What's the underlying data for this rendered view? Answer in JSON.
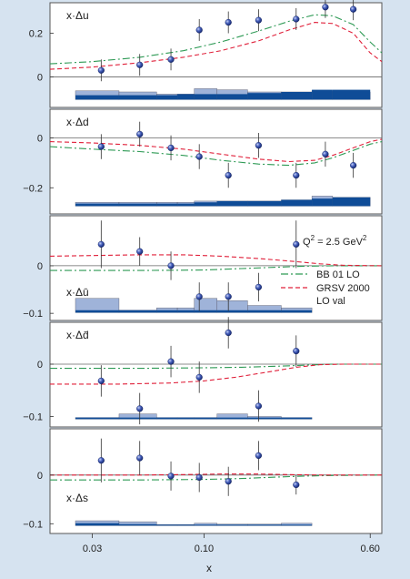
{
  "figure": {
    "xlabel": "x",
    "xticks": [
      {
        "value": 0.03,
        "label": "0.03"
      },
      {
        "value": 0.1,
        "label": "0.10"
      },
      {
        "value": 0.6,
        "label": "0.60"
      }
    ],
    "xlim": [
      0.019,
      0.68
    ],
    "colors": {
      "background": "#d6e3f0",
      "panel": "#ffffff",
      "bb01": "#2e9a55",
      "grsv": "#e0203a",
      "point": "#2a3f9a",
      "band_light": "#9fb3d9",
      "band_dark": "#0f4c97"
    }
  },
  "legend": {
    "q2_prefix": "Q",
    "q2_exp": "2",
    "q2_value": " = 2.5 GeV",
    "q2_unit_exp": "2",
    "bb01_label": "BB 01 LO",
    "grsv_label_1": "GRSV 2000",
    "grsv_label_2": "LO val"
  },
  "chart_data": [
    {
      "type": "scatter",
      "label": "x·Δu",
      "ylim": [
        -0.14,
        0.34
      ],
      "yticks": [
        {
          "value": 0,
          "label": "0"
        },
        {
          "value": 0.2,
          "label": "0.2"
        }
      ],
      "points": [
        {
          "x": 0.033,
          "y": 0.03,
          "err": 0.05
        },
        {
          "x": 0.05,
          "y": 0.055,
          "err": 0.05
        },
        {
          "x": 0.07,
          "y": 0.08,
          "err": 0.05
        },
        {
          "x": 0.095,
          "y": 0.215,
          "err": 0.05
        },
        {
          "x": 0.13,
          "y": 0.25,
          "err": 0.05
        },
        {
          "x": 0.18,
          "y": 0.26,
          "err": 0.05
        },
        {
          "x": 0.27,
          "y": 0.265,
          "err": 0.05
        },
        {
          "x": 0.37,
          "y": 0.32,
          "err": 0.05
        },
        {
          "x": 0.5,
          "y": 0.31,
          "err": 0.05
        }
      ],
      "bb01": [
        [
          0.019,
          0.06
        ],
        [
          0.03,
          0.07
        ],
        [
          0.05,
          0.09
        ],
        [
          0.08,
          0.12
        ],
        [
          0.12,
          0.16
        ],
        [
          0.18,
          0.21
        ],
        [
          0.25,
          0.255
        ],
        [
          0.33,
          0.285
        ],
        [
          0.4,
          0.28
        ],
        [
          0.5,
          0.24
        ],
        [
          0.6,
          0.16
        ],
        [
          0.68,
          0.11
        ]
      ],
      "grsv": [
        [
          0.019,
          0.035
        ],
        [
          0.03,
          0.045
        ],
        [
          0.05,
          0.065
        ],
        [
          0.08,
          0.09
        ],
        [
          0.12,
          0.12
        ],
        [
          0.18,
          0.165
        ],
        [
          0.25,
          0.215
        ],
        [
          0.33,
          0.25
        ],
        [
          0.4,
          0.245
        ],
        [
          0.5,
          0.2
        ],
        [
          0.6,
          0.11
        ],
        [
          0.68,
          0.07
        ]
      ],
      "bands": {
        "light": [
          [
            0.025,
            0.04,
            0.04
          ],
          [
            0.04,
            0.06,
            0.035
          ],
          [
            0.06,
            0.075,
            0.025
          ],
          [
            0.075,
            0.09,
            0.025
          ],
          [
            0.09,
            0.115,
            0.05
          ],
          [
            0.115,
            0.16,
            0.045
          ],
          [
            0.16,
            0.23,
            0.035
          ],
          [
            0.23,
            0.32,
            0.035
          ],
          [
            0.32,
            0.4,
            0.04
          ],
          [
            0.4,
            0.6,
            0.035
          ]
        ],
        "dark": [
          [
            0.025,
            0.04,
            0.02
          ],
          [
            0.04,
            0.06,
            0.02
          ],
          [
            0.06,
            0.075,
            0.02
          ],
          [
            0.075,
            0.09,
            0.025
          ],
          [
            0.09,
            0.115,
            0.025
          ],
          [
            0.115,
            0.16,
            0.025
          ],
          [
            0.16,
            0.23,
            0.03
          ],
          [
            0.23,
            0.32,
            0.035
          ],
          [
            0.32,
            0.4,
            0.045
          ],
          [
            0.4,
            0.6,
            0.045
          ]
        ]
      }
    },
    {
      "type": "scatter",
      "label": "x·Δd",
      "ylim": [
        -0.305,
        0.115
      ],
      "yticks": [
        {
          "value": 0,
          "label": "0"
        },
        {
          "value": -0.2,
          "label": "−0.2"
        }
      ],
      "points": [
        {
          "x": 0.033,
          "y": -0.035,
          "err": 0.05
        },
        {
          "x": 0.05,
          "y": 0.015,
          "err": 0.05
        },
        {
          "x": 0.07,
          "y": -0.04,
          "err": 0.05
        },
        {
          "x": 0.095,
          "y": -0.075,
          "err": 0.05
        },
        {
          "x": 0.13,
          "y": -0.15,
          "err": 0.05
        },
        {
          "x": 0.18,
          "y": -0.03,
          "err": 0.05
        },
        {
          "x": 0.27,
          "y": -0.15,
          "err": 0.05
        },
        {
          "x": 0.37,
          "y": -0.065,
          "err": 0.05
        },
        {
          "x": 0.5,
          "y": -0.11,
          "err": 0.05
        }
      ],
      "bb01": [
        [
          0.019,
          -0.035
        ],
        [
          0.03,
          -0.045
        ],
        [
          0.05,
          -0.055
        ],
        [
          0.08,
          -0.07
        ],
        [
          0.12,
          -0.09
        ],
        [
          0.18,
          -0.105
        ],
        [
          0.25,
          -0.11
        ],
        [
          0.33,
          -0.1
        ],
        [
          0.4,
          -0.08
        ],
        [
          0.5,
          -0.05
        ],
        [
          0.6,
          -0.025
        ],
        [
          0.68,
          -0.015
        ]
      ],
      "grsv": [
        [
          0.019,
          -0.015
        ],
        [
          0.03,
          -0.02
        ],
        [
          0.05,
          -0.03
        ],
        [
          0.08,
          -0.045
        ],
        [
          0.12,
          -0.065
        ],
        [
          0.18,
          -0.085
        ],
        [
          0.25,
          -0.095
        ],
        [
          0.33,
          -0.09
        ],
        [
          0.4,
          -0.07
        ],
        [
          0.5,
          -0.04
        ],
        [
          0.6,
          -0.015
        ],
        [
          0.68,
          -0.005
        ]
      ],
      "bands": {
        "light": [
          [
            0.025,
            0.04,
            0.015
          ],
          [
            0.04,
            0.06,
            0.015
          ],
          [
            0.06,
            0.075,
            0.015
          ],
          [
            0.075,
            0.09,
            0.015
          ],
          [
            0.09,
            0.115,
            0.02
          ],
          [
            0.115,
            0.16,
            0.02
          ],
          [
            0.16,
            0.23,
            0.02
          ],
          [
            0.23,
            0.32,
            0.025
          ],
          [
            0.32,
            0.4,
            0.04
          ],
          [
            0.4,
            0.6,
            0.035
          ]
        ],
        "dark": [
          [
            0.025,
            0.04,
            0.01
          ],
          [
            0.04,
            0.06,
            0.01
          ],
          [
            0.06,
            0.075,
            0.01
          ],
          [
            0.075,
            0.09,
            0.01
          ],
          [
            0.09,
            0.115,
            0.015
          ],
          [
            0.115,
            0.16,
            0.02
          ],
          [
            0.16,
            0.23,
            0.02
          ],
          [
            0.23,
            0.32,
            0.025
          ],
          [
            0.32,
            0.4,
            0.03
          ],
          [
            0.4,
            0.6,
            0.035
          ]
        ]
      }
    },
    {
      "type": "scatter",
      "label": "x·Δū",
      "ylim": [
        -0.115,
        0.105
      ],
      "yticks": [
        {
          "value": 0,
          "label": "0"
        },
        {
          "value": -0.1,
          "label": "−0.1"
        }
      ],
      "points": [
        {
          "x": 0.033,
          "y": 0.045,
          "err": 0.05
        },
        {
          "x": 0.05,
          "y": 0.03,
          "err": 0.03
        },
        {
          "x": 0.07,
          "y": 0.0,
          "err": 0.03
        },
        {
          "x": 0.095,
          "y": -0.065,
          "err": 0.03
        },
        {
          "x": 0.13,
          "y": -0.065,
          "err": 0.03
        },
        {
          "x": 0.18,
          "y": -0.045,
          "err": 0.03
        },
        {
          "x": 0.27,
          "y": 0.045,
          "err": 0.05
        }
      ],
      "bb01": [
        [
          0.019,
          -0.01
        ],
        [
          0.05,
          -0.01
        ],
        [
          0.1,
          -0.009
        ],
        [
          0.15,
          -0.006
        ],
        [
          0.22,
          -0.003
        ],
        [
          0.3,
          -0.001
        ],
        [
          0.4,
          0.0
        ],
        [
          0.68,
          0.0
        ]
      ],
      "grsv": [
        [
          0.019,
          0.02
        ],
        [
          0.05,
          0.023
        ],
        [
          0.08,
          0.023
        ],
        [
          0.12,
          0.02
        ],
        [
          0.18,
          0.015
        ],
        [
          0.25,
          0.01
        ],
        [
          0.35,
          0.004
        ],
        [
          0.45,
          0.001
        ],
        [
          0.68,
          0.0
        ]
      ],
      "bands": {
        "light": [
          [
            0.025,
            0.04,
            0.03
          ],
          [
            0.04,
            0.06,
            0.005
          ],
          [
            0.06,
            0.075,
            0.01
          ],
          [
            0.075,
            0.09,
            0.01
          ],
          [
            0.09,
            0.115,
            0.03
          ],
          [
            0.115,
            0.16,
            0.025
          ],
          [
            0.16,
            0.23,
            0.015
          ],
          [
            0.23,
            0.32,
            0.01
          ],
          [
            0.32,
            0.4,
            0.0
          ],
          [
            0.4,
            0.6,
            0.0
          ]
        ],
        "dark": [
          [
            0.025,
            0.04,
            0.005
          ],
          [
            0.04,
            0.06,
            0.005
          ],
          [
            0.06,
            0.075,
            0.005
          ],
          [
            0.075,
            0.09,
            0.005
          ],
          [
            0.09,
            0.115,
            0.005
          ],
          [
            0.115,
            0.16,
            0.005
          ],
          [
            0.16,
            0.23,
            0.005
          ],
          [
            0.23,
            0.32,
            0.005
          ],
          [
            0.32,
            0.4,
            0.0
          ],
          [
            0.4,
            0.6,
            0.0
          ]
        ]
      }
    },
    {
      "type": "scatter",
      "label": "x·Δd̄",
      "ylim": [
        -0.12,
        0.08
      ],
      "yticks": [
        {
          "value": 0,
          "label": "0"
        },
        {
          "value": -0.1,
          "label": "−0.1"
        }
      ],
      "points": [
        {
          "x": 0.033,
          "y": -0.032,
          "err": 0.03
        },
        {
          "x": 0.05,
          "y": -0.085,
          "err": 0.03
        },
        {
          "x": 0.07,
          "y": 0.005,
          "err": 0.03
        },
        {
          "x": 0.095,
          "y": -0.025,
          "err": 0.03
        },
        {
          "x": 0.13,
          "y": 0.06,
          "err": 0.03
        },
        {
          "x": 0.18,
          "y": -0.08,
          "err": 0.03
        },
        {
          "x": 0.27,
          "y": 0.025,
          "err": 0.03
        }
      ],
      "bb01": [
        [
          0.019,
          -0.008
        ],
        [
          0.05,
          -0.008
        ],
        [
          0.1,
          -0.007
        ],
        [
          0.15,
          -0.006
        ],
        [
          0.22,
          -0.004
        ],
        [
          0.3,
          -0.002
        ],
        [
          0.4,
          0.0
        ],
        [
          0.68,
          0.0
        ]
      ],
      "grsv": [
        [
          0.019,
          -0.038
        ],
        [
          0.04,
          -0.038
        ],
        [
          0.07,
          -0.036
        ],
        [
          0.1,
          -0.032
        ],
        [
          0.14,
          -0.025
        ],
        [
          0.2,
          -0.015
        ],
        [
          0.27,
          -0.006
        ],
        [
          0.35,
          -0.001
        ],
        [
          0.45,
          0.0
        ],
        [
          0.68,
          0.0
        ]
      ],
      "bands": {
        "light": [
          [
            0.025,
            0.04,
            0.003
          ],
          [
            0.04,
            0.06,
            0.01
          ],
          [
            0.06,
            0.075,
            0.003
          ],
          [
            0.075,
            0.09,
            0.003
          ],
          [
            0.09,
            0.115,
            0.003
          ],
          [
            0.115,
            0.16,
            0.01
          ],
          [
            0.16,
            0.23,
            0.005
          ],
          [
            0.23,
            0.32,
            0.003
          ],
          [
            0.32,
            0.4,
            0.0
          ],
          [
            0.4,
            0.6,
            0.0
          ]
        ],
        "dark": [
          [
            0.025,
            0.04,
            0.003
          ],
          [
            0.04,
            0.06,
            0.003
          ],
          [
            0.06,
            0.075,
            0.003
          ],
          [
            0.075,
            0.09,
            0.003
          ],
          [
            0.09,
            0.115,
            0.003
          ],
          [
            0.115,
            0.16,
            0.003
          ],
          [
            0.16,
            0.23,
            0.003
          ],
          [
            0.23,
            0.32,
            0.003
          ],
          [
            0.32,
            0.4,
            0.0
          ],
          [
            0.4,
            0.6,
            0.0
          ]
        ]
      }
    },
    {
      "type": "scatter",
      "label": "x·Δs",
      "ylim": [
        -0.12,
        0.095
      ],
      "yticks": [
        {
          "value": 0,
          "label": "0"
        },
        {
          "value": -0.1,
          "label": "−0.1"
        }
      ],
      "points": [
        {
          "x": 0.033,
          "y": 0.03,
          "err": 0.045
        },
        {
          "x": 0.05,
          "y": 0.035,
          "err": 0.035
        },
        {
          "x": 0.07,
          "y": -0.002,
          "err": 0.03
        },
        {
          "x": 0.095,
          "y": -0.005,
          "err": 0.03
        },
        {
          "x": 0.13,
          "y": -0.013,
          "err": 0.03
        },
        {
          "x": 0.18,
          "y": 0.04,
          "err": 0.03
        },
        {
          "x": 0.27,
          "y": -0.02,
          "err": 0.02
        }
      ],
      "bb01": [
        [
          0.019,
          -0.01
        ],
        [
          0.05,
          -0.01
        ],
        [
          0.1,
          -0.009
        ],
        [
          0.15,
          -0.007
        ],
        [
          0.22,
          -0.004
        ],
        [
          0.3,
          -0.002
        ],
        [
          0.4,
          -0.001
        ],
        [
          0.68,
          0.0
        ]
      ],
      "grsv": [
        [
          0.019,
          0.0
        ],
        [
          0.05,
          0.0
        ],
        [
          0.08,
          0.001
        ],
        [
          0.12,
          0.002
        ],
        [
          0.18,
          0.002
        ],
        [
          0.25,
          0.001
        ],
        [
          0.35,
          0.0
        ],
        [
          0.68,
          0.0
        ]
      ],
      "bands": {
        "light": [
          [
            0.025,
            0.04,
            0.01
          ],
          [
            0.04,
            0.06,
            0.008
          ],
          [
            0.06,
            0.075,
            0.002
          ],
          [
            0.075,
            0.09,
            0.002
          ],
          [
            0.09,
            0.115,
            0.005
          ],
          [
            0.115,
            0.16,
            0.003
          ],
          [
            0.16,
            0.23,
            0.003
          ],
          [
            0.23,
            0.32,
            0.005
          ],
          [
            0.32,
            0.4,
            0.0
          ],
          [
            0.4,
            0.6,
            0.0
          ]
        ],
        "dark": [
          [
            0.025,
            0.04,
            0.005
          ],
          [
            0.04,
            0.06,
            0.003
          ],
          [
            0.06,
            0.075,
            0.002
          ],
          [
            0.075,
            0.09,
            0.002
          ],
          [
            0.09,
            0.115,
            0.002
          ],
          [
            0.115,
            0.16,
            0.002
          ],
          [
            0.16,
            0.23,
            0.002
          ],
          [
            0.23,
            0.32,
            0.002
          ],
          [
            0.32,
            0.4,
            0.0
          ],
          [
            0.4,
            0.6,
            0.0
          ]
        ]
      }
    }
  ]
}
